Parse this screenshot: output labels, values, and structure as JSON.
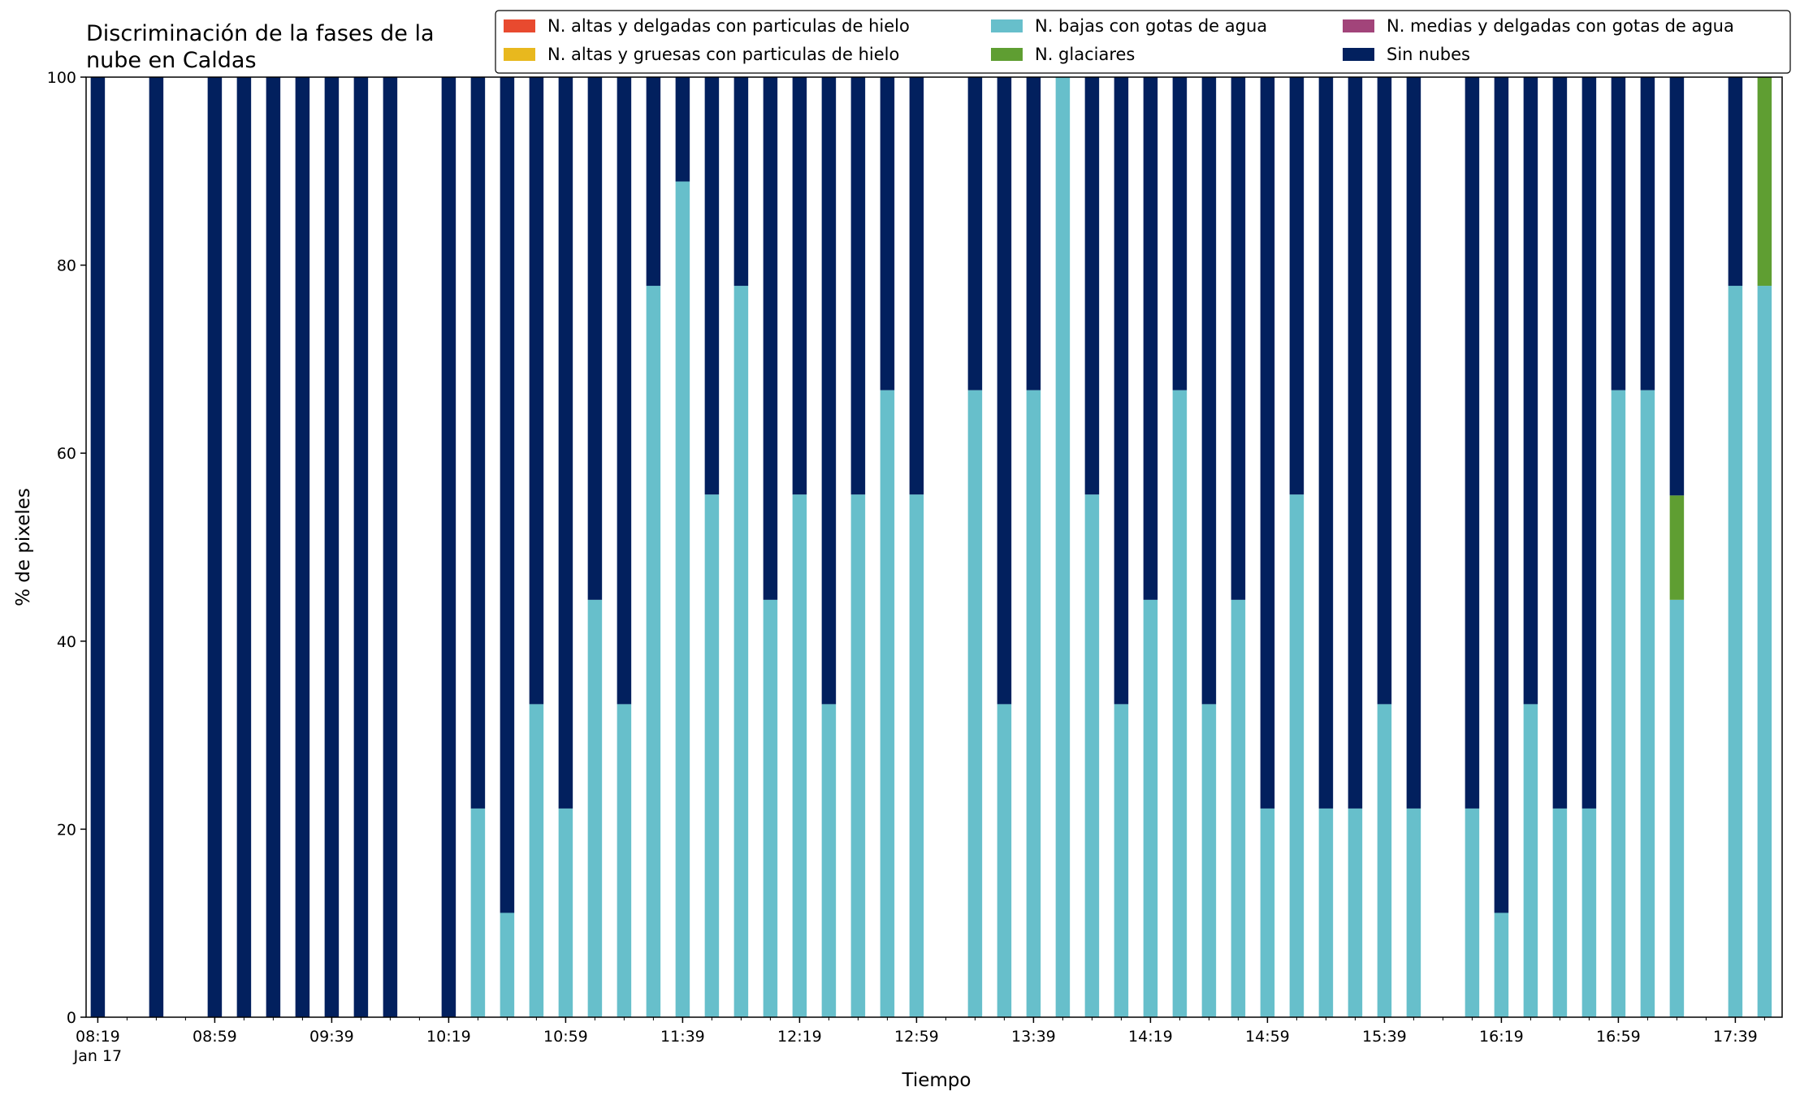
{
  "chart_data": {
    "type": "bar",
    "stacked": true,
    "title": "Discriminación de la fases de la nube en Caldas",
    "title_lines": [
      "Discriminación de la fases de la",
      "nube en Caldas"
    ],
    "xlabel": "Tiempo",
    "ylabel": "% de pixeles",
    "ylim": [
      0,
      100
    ],
    "yticks": [
      0,
      20,
      40,
      60,
      80,
      100
    ],
    "xlim": [
      "2025-01-17 08:15",
      "2025-01-17 17:55"
    ],
    "x_minor_tick_interval_minutes": 10,
    "xticks": [
      {
        "time": "08:19",
        "label": "08:19",
        "sublabel": "Jan 17"
      },
      {
        "time": "08:59",
        "label": "08:59"
      },
      {
        "time": "09:39",
        "label": "09:39"
      },
      {
        "time": "10:19",
        "label": "10:19"
      },
      {
        "time": "10:59",
        "label": "10:59"
      },
      {
        "time": "11:39",
        "label": "11:39"
      },
      {
        "time": "12:19",
        "label": "12:19"
      },
      {
        "time": "12:59",
        "label": "12:59"
      },
      {
        "time": "13:39",
        "label": "13:39"
      },
      {
        "time": "14:19",
        "label": "14:19"
      },
      {
        "time": "14:59",
        "label": "14:59"
      },
      {
        "time": "15:39",
        "label": "15:39"
      },
      {
        "time": "16:19",
        "label": "16:19"
      },
      {
        "time": "16:59",
        "label": "16:59"
      },
      {
        "time": "17:39",
        "label": "17:39"
      }
    ],
    "legend": {
      "placement": "top-right",
      "columns": 3,
      "items": [
        {
          "name": "N. altas y delgadas con particulas de hielo",
          "color": "#e84a2f"
        },
        {
          "name": "N. altas y gruesas con particulas de hielo",
          "color": "#e8b81e"
        },
        {
          "name": "N. bajas con gotas de agua",
          "color": "#67bfcb"
        },
        {
          "name": "N. glaciares",
          "color": "#5f9e32"
        },
        {
          "name": "N. medias y delgadas con gotas de agua",
          "color": "#a2447a"
        },
        {
          "name": "Sin nubes",
          "color": "#02205e"
        }
      ]
    },
    "series_order": [
      "N. bajas con gotas de agua",
      "N. glaciares",
      "Sin nubes"
    ],
    "x": [
      "08:19",
      "08:39",
      "08:59",
      "09:09",
      "09:19",
      "09:29",
      "09:39",
      "09:49",
      "09:59",
      "10:19",
      "10:29",
      "10:39",
      "10:49",
      "10:59",
      "11:09",
      "11:19",
      "11:29",
      "11:39",
      "11:49",
      "11:59",
      "12:09",
      "12:19",
      "12:29",
      "12:39",
      "12:49",
      "12:59",
      "13:19",
      "13:29",
      "13:39",
      "13:49",
      "13:59",
      "14:09",
      "14:19",
      "14:29",
      "14:39",
      "14:49",
      "14:59",
      "15:09",
      "15:19",
      "15:29",
      "15:39",
      "15:49",
      "16:09",
      "16:19",
      "16:29",
      "16:39",
      "16:49",
      "16:59",
      "17:09",
      "17:19",
      "17:39",
      "17:49"
    ],
    "series": [
      {
        "name": "N. bajas con gotas de agua",
        "color": "#67bfcb",
        "values": [
          0,
          0,
          0,
          0,
          0,
          0,
          0,
          0,
          0,
          0,
          22.2,
          11.1,
          33.3,
          22.2,
          44.4,
          33.3,
          77.8,
          88.9,
          55.6,
          77.8,
          44.4,
          55.6,
          33.3,
          55.6,
          66.7,
          55.6,
          66.7,
          33.3,
          66.7,
          100,
          55.6,
          33.3,
          44.4,
          66.7,
          33.3,
          44.4,
          22.2,
          55.6,
          22.2,
          22.2,
          33.3,
          22.2,
          22.2,
          11.1,
          33.3,
          22.2,
          22.2,
          66.7,
          66.7,
          44.4,
          77.8,
          77.8
        ]
      },
      {
        "name": "N. glaciares",
        "color": "#5f9e32",
        "values": [
          0,
          0,
          0,
          0,
          0,
          0,
          0,
          0,
          0,
          0,
          0,
          0,
          0,
          0,
          0,
          0,
          0,
          0,
          0,
          0,
          0,
          0,
          0,
          0,
          0,
          0,
          0,
          0,
          0,
          0,
          0,
          0,
          0,
          0,
          0,
          0,
          0,
          0,
          0,
          0,
          0,
          0,
          0,
          0,
          0,
          0,
          0,
          0,
          0,
          11.1,
          0,
          22.2
        ]
      },
      {
        "name": "Sin nubes",
        "color": "#02205e",
        "values": [
          100,
          100,
          100,
          100,
          100,
          100,
          100,
          100,
          100,
          100,
          77.8,
          88.9,
          66.7,
          77.8,
          55.6,
          66.7,
          22.2,
          11.1,
          44.4,
          22.2,
          55.6,
          44.4,
          66.7,
          44.4,
          33.3,
          44.4,
          33.3,
          66.7,
          33.3,
          0,
          44.4,
          66.7,
          55.6,
          33.3,
          66.7,
          55.6,
          77.8,
          44.4,
          77.8,
          77.8,
          66.7,
          77.8,
          77.8,
          88.9,
          66.7,
          77.8,
          77.8,
          33.3,
          33.3,
          44.5,
          22.2,
          0
        ]
      }
    ]
  }
}
